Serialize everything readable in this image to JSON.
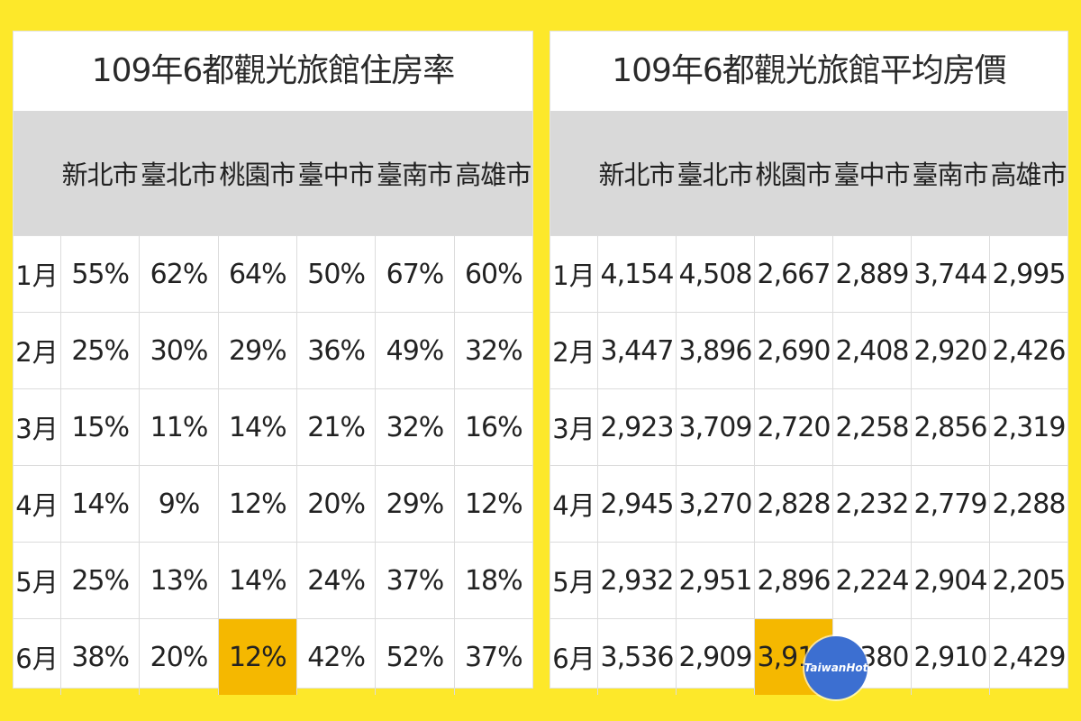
{
  "chart_data": [
    {
      "type": "table",
      "title": "109年6都觀光旅館住房率",
      "columns": [
        "新北市",
        "臺北市",
        "桃園市",
        "臺中市",
        "臺南市",
        "高雄市"
      ],
      "rows": [
        {
          "month": "1月",
          "values": [
            "55%",
            "62%",
            "64%",
            "50%",
            "67%",
            "60%"
          ]
        },
        {
          "month": "2月",
          "values": [
            "25%",
            "30%",
            "29%",
            "36%",
            "49%",
            "32%"
          ]
        },
        {
          "month": "3月",
          "values": [
            "15%",
            "11%",
            "14%",
            "21%",
            "32%",
            "16%"
          ]
        },
        {
          "month": "4月",
          "values": [
            "14%",
            "9%",
            "12%",
            "20%",
            "29%",
            "12%"
          ]
        },
        {
          "month": "5月",
          "values": [
            "25%",
            "13%",
            "14%",
            "24%",
            "37%",
            "18%"
          ]
        },
        {
          "month": "6月",
          "values": [
            "38%",
            "20%",
            "12%",
            "42%",
            "52%",
            "37%"
          ]
        }
      ],
      "highlight": {
        "row": 5,
        "col": 2,
        "color": "#f5b800"
      }
    },
    {
      "type": "table",
      "title": "109年6都觀光旅館平均房價",
      "columns": [
        "新北市",
        "臺北市",
        "桃園市",
        "臺中市",
        "臺南市",
        "高雄市"
      ],
      "rows": [
        {
          "month": "1月",
          "values": [
            "4,154",
            "4,508",
            "2,667",
            "2,889",
            "3,744",
            "2,995"
          ]
        },
        {
          "month": "2月",
          "values": [
            "3,447",
            "3,896",
            "2,690",
            "2,408",
            "2,920",
            "2,426"
          ]
        },
        {
          "month": "3月",
          "values": [
            "2,923",
            "3,709",
            "2,720",
            "2,258",
            "2,856",
            "2,319"
          ]
        },
        {
          "month": "4月",
          "values": [
            "2,945",
            "3,270",
            "2,828",
            "2,232",
            "2,779",
            "2,288"
          ]
        },
        {
          "month": "5月",
          "values": [
            "2,932",
            "2,951",
            "2,896",
            "2,224",
            "2,904",
            "2,205"
          ]
        },
        {
          "month": "6月",
          "values": [
            "3,536",
            "2,909",
            "3,914",
            "2,380",
            "2,910",
            "2,429"
          ]
        }
      ],
      "highlight": {
        "row": 5,
        "col": 2,
        "color": "#f5b800"
      }
    }
  ],
  "colors": {
    "background": "#fde82a",
    "header_band": "#d9d9d9",
    "highlight": "#f5b800"
  },
  "watermark": {
    "text": "TaiwanHot"
  }
}
